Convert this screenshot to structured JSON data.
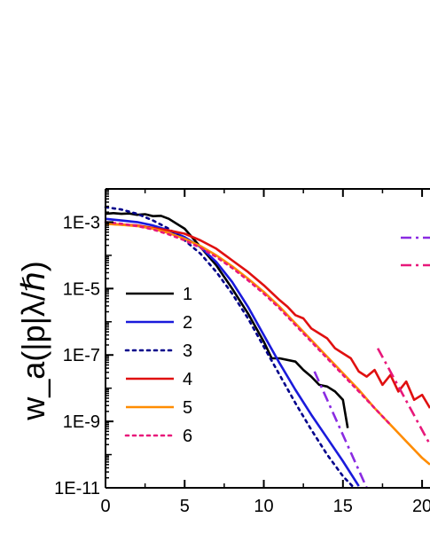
{
  "chart_data": {
    "type": "line",
    "ylabel": "w_a(|p|λ/ℏ)",
    "xlabel": "",
    "y_log": true,
    "xlim": [
      0,
      20.5
    ],
    "ylim_exp": [
      -11,
      -2
    ],
    "x_ticks": [
      0,
      5,
      10,
      15,
      20
    ],
    "x_tick_labels": [
      "0",
      "5",
      "10",
      "15",
      "20"
    ],
    "y_ticks_exp": [
      -11,
      -9,
      -7,
      -5,
      -3
    ],
    "y_tick_labels": [
      "1E-11",
      "1E-9",
      "1E-7",
      "1E-5",
      "1E-3"
    ],
    "legend_placement": "left",
    "series": [
      {
        "name": "1",
        "color": "#000000",
        "dash": "solid",
        "x": [
          0,
          0.5,
          1,
          1.5,
          2,
          2.5,
          3,
          3.5,
          4,
          5,
          6,
          7,
          8,
          9,
          10,
          10.5,
          11,
          12,
          12.5,
          13,
          13.5,
          14,
          14.5,
          15,
          15.3
        ],
        "y": [
          -2.75,
          -2.73,
          -2.75,
          -2.74,
          -2.78,
          -2.76,
          -2.82,
          -2.81,
          -2.9,
          -3.2,
          -3.75,
          -4.3,
          -5.0,
          -5.75,
          -6.6,
          -7.1,
          -7.1,
          -7.2,
          -7.45,
          -7.65,
          -7.9,
          -7.95,
          -8.1,
          -8.35,
          -9.2
        ]
      },
      {
        "name": "2",
        "color": "#1a1adb",
        "dash": "solid",
        "x": [
          0,
          1,
          2,
          3,
          4,
          5,
          6,
          7,
          8,
          9,
          10,
          11,
          12,
          13,
          14,
          15,
          16
        ],
        "y": [
          -2.9,
          -2.95,
          -3.0,
          -3.1,
          -3.25,
          -3.45,
          -3.75,
          -4.2,
          -4.8,
          -5.55,
          -6.4,
          -7.25,
          -8.05,
          -8.8,
          -9.5,
          -10.2,
          -10.95
        ]
      },
      {
        "name": "3",
        "color": "#00008b",
        "dash": "dotted",
        "x": [
          0,
          1,
          2,
          3,
          4,
          5,
          6,
          7,
          8,
          9,
          10,
          11,
          12,
          13,
          14,
          15,
          15.7
        ],
        "y": [
          -2.55,
          -2.62,
          -2.75,
          -2.95,
          -3.2,
          -3.55,
          -3.95,
          -4.5,
          -5.15,
          -5.9,
          -6.75,
          -7.6,
          -8.45,
          -9.25,
          -10.0,
          -10.65,
          -11.0
        ]
      },
      {
        "name": "4",
        "color": "#e01010",
        "dash": "solid",
        "x": [
          0,
          2,
          4,
          5,
          6,
          7,
          8,
          9,
          10,
          11,
          11.5,
          12,
          12.5,
          13,
          13.5,
          14,
          14.5,
          15,
          15.5,
          16,
          16.5,
          17,
          17.5,
          18,
          18.5,
          19,
          19.5,
          20,
          20.5
        ],
        "y": [
          -3.05,
          -3.1,
          -3.25,
          -3.35,
          -3.55,
          -3.8,
          -4.15,
          -4.5,
          -4.9,
          -5.35,
          -5.55,
          -5.8,
          -5.9,
          -6.2,
          -6.35,
          -6.5,
          -6.8,
          -6.95,
          -7.1,
          -7.5,
          -7.65,
          -7.45,
          -7.9,
          -7.6,
          -8.1,
          -7.8,
          -8.35,
          -8.2,
          -8.6
        ]
      },
      {
        "name": "5",
        "color": "#ff8c00",
        "dash": "solid",
        "x": [
          0,
          1,
          2,
          3,
          4,
          5,
          6,
          7,
          8,
          9,
          10,
          11,
          12,
          13,
          14,
          15,
          16,
          17,
          18,
          19,
          20,
          20.5
        ],
        "y": [
          -3.05,
          -3.08,
          -3.12,
          -3.2,
          -3.33,
          -3.5,
          -3.72,
          -4.0,
          -4.33,
          -4.7,
          -5.1,
          -5.55,
          -6.05,
          -6.55,
          -7.05,
          -7.55,
          -8.05,
          -8.6,
          -9.1,
          -9.6,
          -10.1,
          -10.3
        ]
      },
      {
        "name": "6",
        "color": "#e8187a",
        "dash": "dotted",
        "x": [
          0,
          1,
          2,
          3,
          4,
          5,
          6,
          7,
          8,
          9,
          10,
          11,
          12,
          13,
          14,
          15,
          16,
          17,
          18
        ],
        "y": [
          -3.0,
          -3.05,
          -3.12,
          -3.22,
          -3.37,
          -3.55,
          -3.77,
          -4.05,
          -4.38,
          -4.75,
          -5.15,
          -5.6,
          -6.1,
          -6.6,
          -7.1,
          -7.6,
          -8.1,
          -8.6,
          -9.1
        ]
      },
      {
        "name": "",
        "color": "#8a2be2",
        "dash": "dashdot",
        "legend": false,
        "x": [
          13.2,
          16.5
        ],
        "y": [
          -7.5,
          -11.0
        ]
      },
      {
        "name": "",
        "color": "#e8187a",
        "dash": "dashdot",
        "legend": false,
        "x": [
          17.2,
          20.5
        ],
        "y": [
          -6.8,
          -9.7
        ]
      }
    ],
    "legend_extra": [
      {
        "color": "#8a2be2",
        "dash": "dashdot"
      },
      {
        "color": "#e8187a",
        "dash": "dashdot"
      }
    ]
  }
}
